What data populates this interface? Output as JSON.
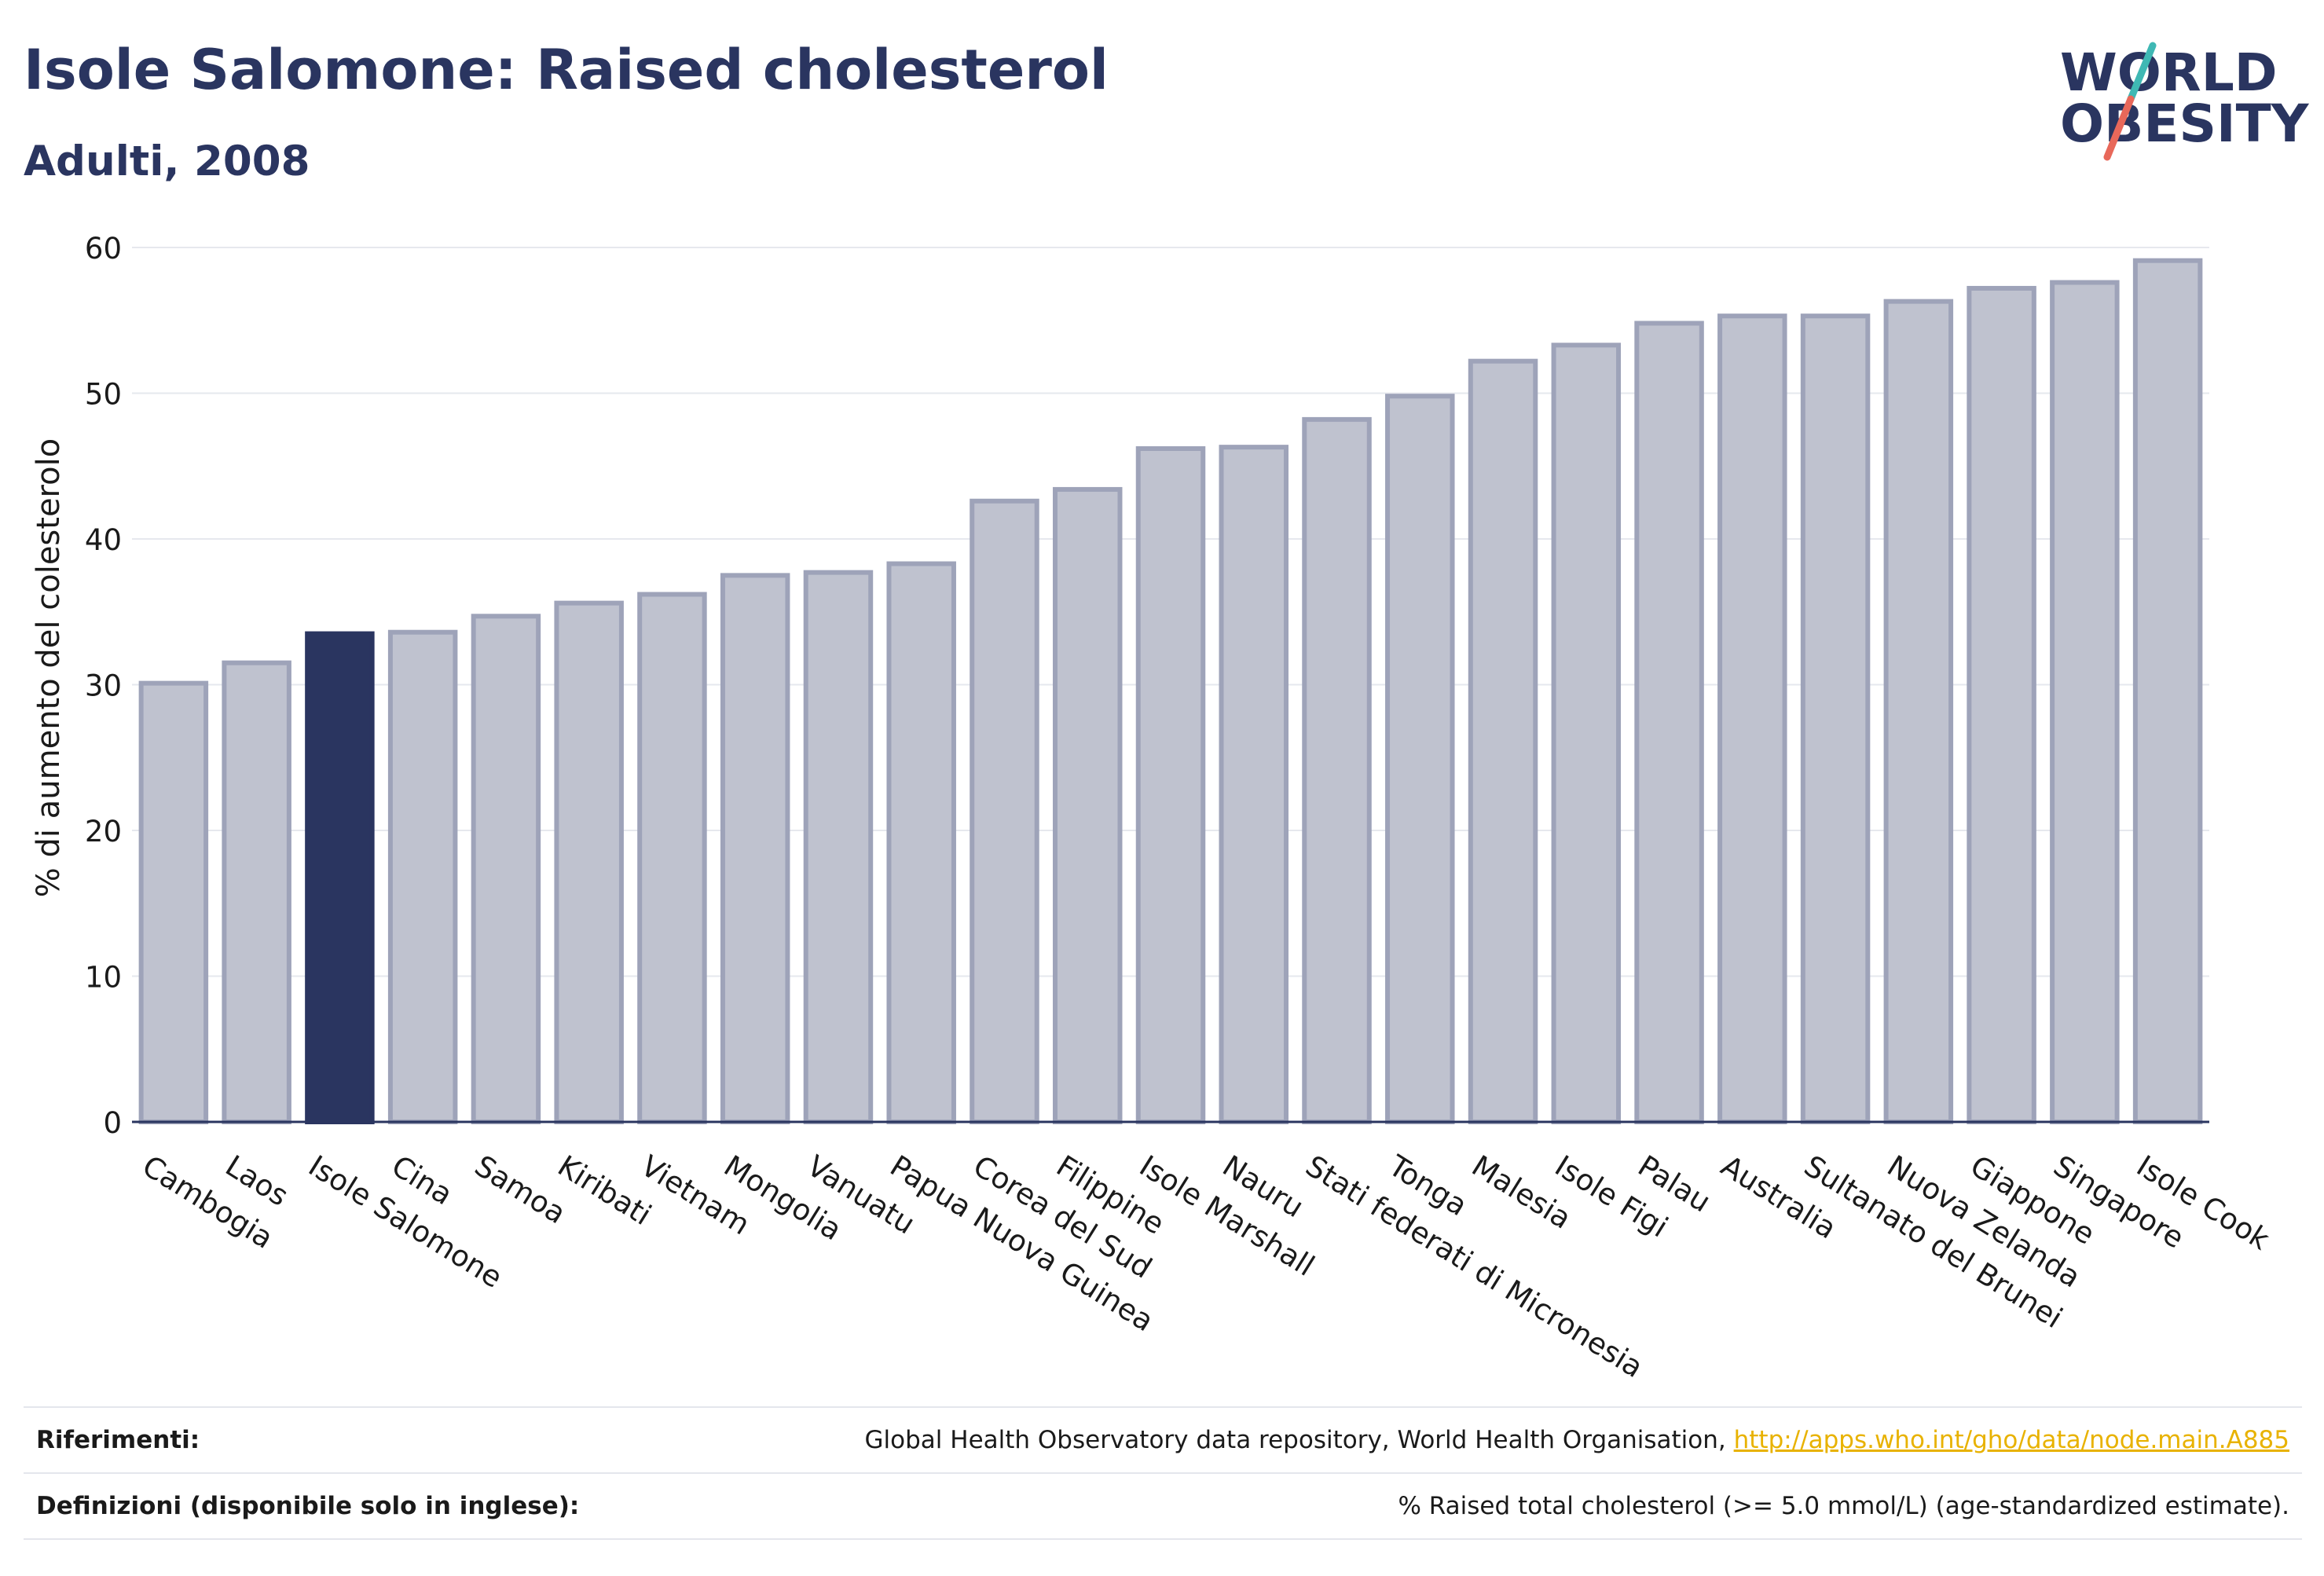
{
  "header": {
    "title": "Isole Salomone: Raised cholesterol",
    "subtitle": "Adulti, 2008"
  },
  "logo": {
    "line1": "WORLD",
    "line2": "OBESITY",
    "colors": {
      "text": "#2a3560",
      "accent_teal": "#3fb8b4",
      "accent_red": "#e8685a"
    }
  },
  "chart_data": {
    "type": "bar",
    "title": "Isole Salomone: Raised cholesterol",
    "subtitle": "Adulti, 2008",
    "xlabel": "",
    "ylabel": "% di aumento del colesterolo",
    "ylim": [
      0,
      60
    ],
    "yticks": [
      0,
      10,
      20,
      30,
      40,
      50,
      60
    ],
    "grid": true,
    "highlight": "Isole Salomone",
    "colors": {
      "bar": "#bfc2cf",
      "bar_stroke": "#9ea3b9",
      "highlight": "#2a3560",
      "grid": "#e6e8ee",
      "axis": "#2a3560"
    },
    "categories": [
      "Cambogia",
      "Laos",
      "Isole Salomone",
      "Cina",
      "Samoa",
      "Kiribati",
      "Vietnam",
      "Mongolia",
      "Vanuatu",
      "Papua Nuova Guinea",
      "Corea del Sud",
      "Filippine",
      "Isole Marshall",
      "Nauru",
      "Stati federati di Micronesia",
      "Tonga",
      "Malesia",
      "Isole Figi",
      "Palau",
      "Australia",
      "Sultanato del Brunei",
      "Nuova Zelanda",
      "Giappone",
      "Singapore",
      "Isole Cook"
    ],
    "values": [
      30.1,
      31.5,
      33.5,
      33.6,
      34.7,
      35.6,
      36.2,
      37.5,
      37.7,
      38.3,
      42.6,
      43.4,
      46.2,
      46.3,
      48.2,
      49.8,
      52.2,
      53.3,
      54.8,
      55.3,
      55.3,
      56.3,
      57.2,
      57.6,
      59.1
    ]
  },
  "footer": {
    "references_label": "Riferimenti:",
    "references_text": "Global Health Observatory data repository, World Health Organisation, ",
    "references_link": "http://apps.who.int/gho/data/node.main.A885",
    "definitions_label": "Definizioni (disponibile solo in inglese):",
    "definitions_text": "% Raised total cholesterol (>= 5.0 mmol/L) (age-standardized estimate)."
  }
}
